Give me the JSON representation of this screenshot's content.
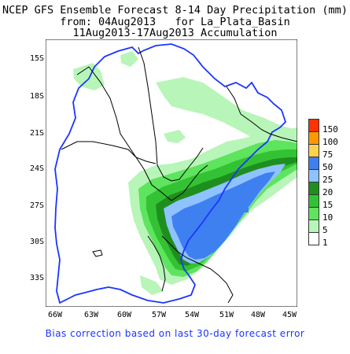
{
  "title": {
    "line1": "NCEP GFS Ensemble Forecast 8-14 Day Precipitation (mm)",
    "line2": "from: 04Aug2013   for La_Plata_Basin",
    "line3": "11Aug2013-17Aug2013 Accumulation"
  },
  "axes": {
    "lat_ticks": [
      "15S",
      "18S",
      "21S",
      "24S",
      "27S",
      "30S",
      "33S"
    ],
    "lon_ticks": [
      "66W",
      "63W",
      "60W",
      "57W",
      "54W",
      "51W",
      "48W",
      "45W"
    ]
  },
  "legend": {
    "levels": [
      {
        "label": "150",
        "color": "#ff3300"
      },
      {
        "label": "100",
        "color": "#ff9900"
      },
      {
        "label": "75",
        "color": "#ffd24d"
      },
      {
        "label": "50",
        "color": "#3f80f0"
      },
      {
        "label": "25",
        "color": "#8fc3ff"
      },
      {
        "label": "20",
        "color": "#1e8f1e"
      },
      {
        "label": "15",
        "color": "#33c233"
      },
      {
        "label": "10",
        "color": "#5ee45e"
      },
      {
        "label": "5",
        "color": "#b8f5b8"
      },
      {
        "label": "1",
        "color": "#ffffff"
      }
    ]
  },
  "footer": "Bias correction based on last 30-day forecast error",
  "colors": {
    "basin_outline": "#1a35ff",
    "borders": "#000000",
    "footer_text": "#1a35ff"
  }
}
